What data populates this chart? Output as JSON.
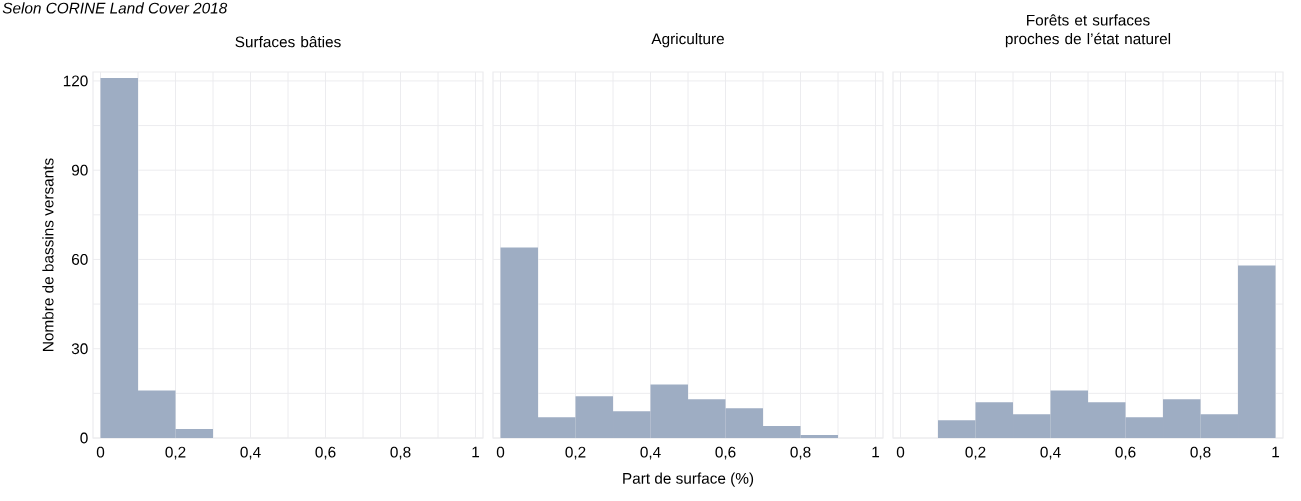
{
  "chart_data": [
    {
      "type": "histogram",
      "title": "Surfaces bâties",
      "subtitle": "Selon CORINE Land Cover 2018",
      "ylabel": "Nombre de bassins versants",
      "bins": [
        0,
        0.1,
        0.2,
        0.3,
        0.4,
        0.5,
        0.6,
        0.7,
        0.8,
        0.9,
        1
      ],
      "values": [
        121,
        16,
        3,
        0,
        0,
        0,
        0,
        0,
        0,
        0
      ],
      "color": "#9eadc3",
      "xlim": [
        -0.02,
        1.02
      ],
      "ylim": [
        0,
        123
      ],
      "xticks": [
        0,
        {
          "value": 0.2,
          "label": "0,2"
        },
        {
          "value": 0.4,
          "label": "0,4"
        },
        {
          "value": 0.6,
          "label": "0,6"
        },
        {
          "value": 0.8,
          "label": "0,8"
        },
        1
      ],
      "yticks": [
        0,
        30,
        60,
        90,
        120
      ],
      "grid": true
    },
    {
      "type": "histogram",
      "title": "Agriculture",
      "xlabel": "Part de surface (%)",
      "bins": [
        0,
        0.1,
        0.2,
        0.3,
        0.4,
        0.5,
        0.6,
        0.7,
        0.8,
        0.9,
        1
      ],
      "values": [
        64,
        7,
        14,
        9,
        18,
        13,
        10,
        4,
        1,
        0
      ],
      "color": "#9eadc3",
      "xlim": [
        -0.02,
        1.02
      ],
      "ylim": [
        0,
        123
      ],
      "xticks": [
        0,
        {
          "value": 0.2,
          "label": "0,2"
        },
        {
          "value": 0.4,
          "label": "0,4"
        },
        {
          "value": 0.6,
          "label": "0,6"
        },
        {
          "value": 0.8,
          "label": "0,8"
        },
        1
      ],
      "yticks": [
        0,
        30,
        60,
        90,
        120
      ],
      "grid": true,
      "tick_labels": "x"
    },
    {
      "type": "histogram",
      "title": "Forêts et surfaces proches de l’état naturel",
      "bins": [
        0,
        0.1,
        0.2,
        0.3,
        0.4,
        0.5,
        0.6,
        0.7,
        0.8,
        0.9,
        1
      ],
      "values": [
        0,
        6,
        12,
        8,
        16,
        12,
        7,
        13,
        8,
        58
      ],
      "color": "#9eadc3",
      "xlim": [
        -0.02,
        1.02
      ],
      "ylim": [
        0,
        123
      ],
      "xticks": [
        0,
        {
          "value": 0.2,
          "label": "0,2"
        },
        {
          "value": 0.4,
          "label": "0,4"
        },
        {
          "value": 0.6,
          "label": "0,6"
        },
        {
          "value": 0.8,
          "label": "0,8"
        },
        1
      ],
      "yticks": [
        0,
        30,
        60,
        90,
        120
      ],
      "grid": true,
      "tick_labels": "x"
    }
  ]
}
